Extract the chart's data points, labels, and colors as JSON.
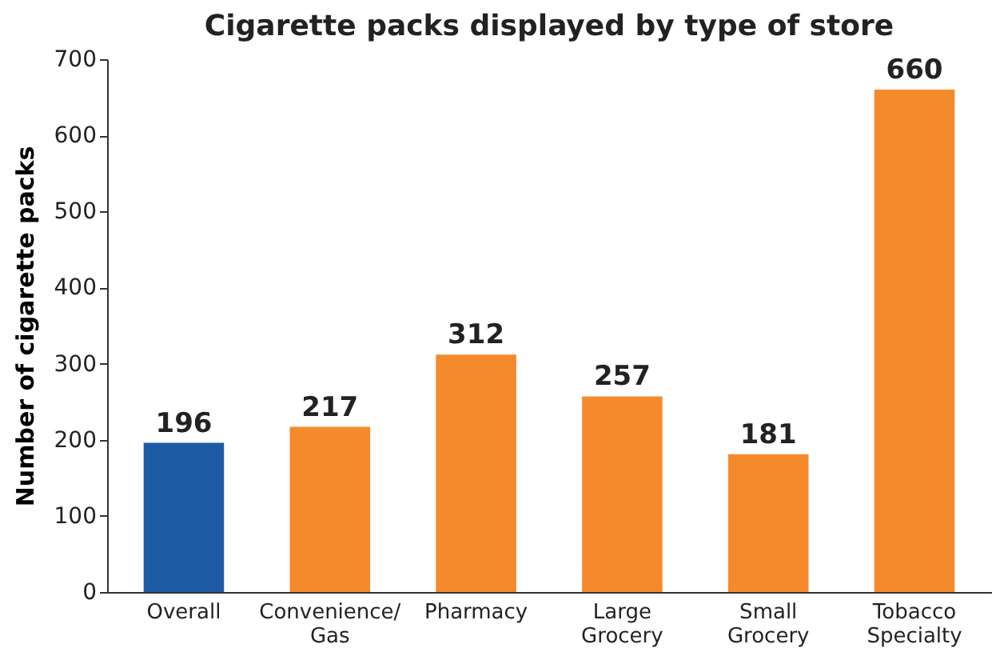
{
  "chart_data": {
    "type": "bar",
    "title": "Cigarette packs displayed by type of store",
    "ylabel": "Number of cigarette packs",
    "categories": [
      "Overall",
      "Convenience/Gas",
      "Pharmacy",
      "Large Grocery",
      "Small Grocery",
      "Tobacco Specialty"
    ],
    "values": [
      196,
      217,
      312,
      257,
      181,
      660
    ],
    "colors": [
      "#1f5aa6",
      "#f58a2c",
      "#f58a2c",
      "#f58a2c",
      "#f58a2c",
      "#f58a2c"
    ],
    "ylim": [
      0,
      700
    ],
    "yticks": [
      0,
      100,
      200,
      300,
      400,
      500,
      600,
      700
    ],
    "grid": false,
    "data_labels": true
  }
}
